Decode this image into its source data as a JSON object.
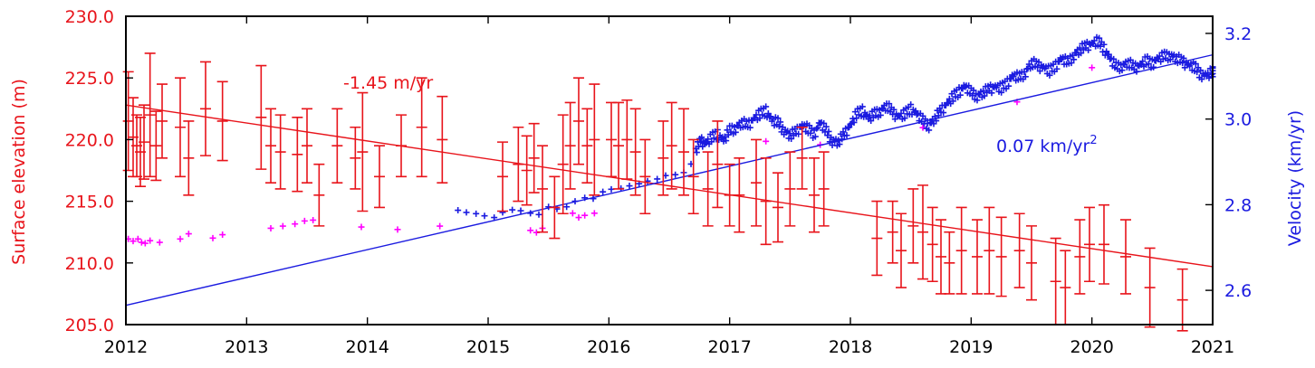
{
  "chart_data": {
    "type": "scatter",
    "colors": {
      "elevation": "#e8141b",
      "velocity": "#1b1be0",
      "velocity_alt": "#ff00ff",
      "axes": "#000000"
    },
    "x_axis": {
      "range": [
        2012,
        2021
      ],
      "ticks": [
        "2012",
        "2013",
        "2014",
        "2015",
        "2016",
        "2017",
        "2018",
        "2019",
        "2020",
        "2021"
      ],
      "label": ""
    },
    "y_left": {
      "label": "Surface elevation (m)",
      "range": [
        205,
        230
      ],
      "ticks": [
        "205.0",
        "210.0",
        "215.0",
        "220.0",
        "225.0",
        "230.0"
      ]
    },
    "y_right": {
      "label": "Velocity (km/yr)",
      "range": [
        2.52,
        3.24
      ],
      "ticks": [
        "2.6",
        "2.8",
        "3.0",
        "3.2"
      ]
    },
    "annotations": {
      "elevation_trend": "-1.45 m/yr",
      "velocity_trend_value": "0.07 km/yr",
      "velocity_trend_exp": "2"
    },
    "trend_elevation": {
      "x": [
        2012.0,
        2021.0
      ],
      "y": [
        222.8,
        209.7
      ]
    },
    "trend_velocity": {
      "x": [
        2012.0,
        2021.0
      ],
      "y": [
        2.565,
        3.15
      ]
    },
    "elevation_series": {
      "name": "Surface elevation",
      "points": [
        [
          2012.02,
          221.5,
          4.0
        ],
        [
          2012.06,
          220.2,
          3.2
        ],
        [
          2012.09,
          219.5,
          2.5
        ],
        [
          2012.12,
          219.0,
          2.8
        ],
        [
          2012.15,
          219.8,
          3.0
        ],
        [
          2012.2,
          222.0,
          5.0
        ],
        [
          2012.25,
          219.5,
          2.8
        ],
        [
          2012.3,
          221.5,
          3.0
        ],
        [
          2012.45,
          221.0,
          4.0
        ],
        [
          2012.52,
          218.5,
          3.0
        ],
        [
          2012.66,
          222.5,
          3.8
        ],
        [
          2012.8,
          221.5,
          3.2
        ],
        [
          2013.12,
          221.8,
          4.2
        ],
        [
          2013.2,
          219.5,
          3.0
        ],
        [
          2013.28,
          219.0,
          3.0
        ],
        [
          2013.42,
          218.8,
          3.0
        ],
        [
          2013.5,
          219.5,
          3.0
        ],
        [
          2013.6,
          215.5,
          2.5
        ],
        [
          2013.75,
          219.5,
          3.0
        ],
        [
          2013.9,
          218.5,
          2.5
        ],
        [
          2013.96,
          219.0,
          4.8
        ],
        [
          2014.1,
          217.0,
          2.5
        ],
        [
          2014.28,
          219.5,
          2.5
        ],
        [
          2014.45,
          221.0,
          4.0
        ],
        [
          2014.62,
          220.0,
          3.5
        ],
        [
          2015.12,
          217.0,
          2.8
        ],
        [
          2015.25,
          218.0,
          3.0
        ],
        [
          2015.32,
          217.5,
          2.8
        ],
        [
          2015.38,
          218.5,
          2.8
        ],
        [
          2015.45,
          216.0,
          3.5
        ],
        [
          2015.55,
          214.5,
          2.5
        ],
        [
          2015.62,
          218.0,
          4.0
        ],
        [
          2015.68,
          219.5,
          3.5
        ],
        [
          2015.75,
          221.5,
          3.5
        ],
        [
          2015.82,
          219.5,
          3.0
        ],
        [
          2015.88,
          220.0,
          4.5
        ],
        [
          2016.02,
          220.0,
          3.0
        ],
        [
          2016.08,
          219.5,
          3.5
        ],
        [
          2016.15,
          220.0,
          3.2
        ],
        [
          2016.22,
          219.0,
          3.5
        ],
        [
          2016.3,
          217.0,
          3.0
        ],
        [
          2016.45,
          218.5,
          3.0
        ],
        [
          2016.52,
          219.5,
          3.5
        ],
        [
          2016.62,
          219.0,
          3.5
        ],
        [
          2016.7,
          217.0,
          3.0
        ],
        [
          2016.82,
          216.0,
          3.0
        ],
        [
          2016.9,
          218.0,
          3.5
        ],
        [
          2017.0,
          215.5,
          2.5
        ],
        [
          2017.08,
          215.5,
          3.0
        ],
        [
          2017.22,
          216.5,
          3.5
        ],
        [
          2017.3,
          215.0,
          3.5
        ],
        [
          2017.4,
          214.5,
          2.8
        ],
        [
          2017.5,
          216.0,
          3.0
        ],
        [
          2017.6,
          218.5,
          2.5
        ],
        [
          2017.7,
          215.5,
          3.0
        ],
        [
          2017.78,
          216.0,
          3.0
        ],
        [
          2018.22,
          212.0,
          3.0
        ],
        [
          2018.35,
          212.5,
          2.5
        ],
        [
          2018.42,
          211.0,
          3.0
        ],
        [
          2018.52,
          213.0,
          3.0
        ],
        [
          2018.6,
          212.5,
          3.8
        ],
        [
          2018.68,
          211.5,
          3.0
        ],
        [
          2018.75,
          210.5,
          3.0
        ],
        [
          2018.82,
          210.0,
          2.5
        ],
        [
          2018.92,
          211.0,
          3.5
        ],
        [
          2019.05,
          210.5,
          3.0
        ],
        [
          2019.15,
          211.0,
          3.5
        ],
        [
          2019.25,
          210.5,
          3.2
        ],
        [
          2019.4,
          211.0,
          3.0
        ],
        [
          2019.5,
          210.0,
          3.0
        ],
        [
          2019.7,
          208.5,
          3.5
        ],
        [
          2019.78,
          208.0,
          3.0
        ],
        [
          2019.9,
          210.5,
          3.0
        ],
        [
          2019.98,
          211.5,
          3.0
        ],
        [
          2020.1,
          211.5,
          3.2
        ],
        [
          2020.28,
          210.5,
          3.0
        ],
        [
          2020.48,
          208.0,
          3.2
        ],
        [
          2020.75,
          207.0,
          2.5
        ]
      ]
    },
    "velocity_series": {
      "name": "Velocity",
      "points": [
        [
          2014.75,
          2.787
        ],
        [
          2014.82,
          2.782
        ],
        [
          2014.9,
          2.779
        ],
        [
          2014.97,
          2.774
        ],
        [
          2015.05,
          2.77
        ],
        [
          2015.12,
          2.782
        ],
        [
          2015.2,
          2.788
        ],
        [
          2015.27,
          2.786
        ],
        [
          2015.35,
          2.78
        ],
        [
          2015.42,
          2.777
        ],
        [
          2015.5,
          2.795
        ],
        [
          2015.57,
          2.79
        ],
        [
          2015.65,
          2.795
        ],
        [
          2015.72,
          2.808
        ],
        [
          2015.8,
          2.816
        ],
        [
          2015.87,
          2.814
        ],
        [
          2015.95,
          2.83
        ],
        [
          2016.02,
          2.836
        ],
        [
          2016.1,
          2.838
        ],
        [
          2016.17,
          2.844
        ],
        [
          2016.25,
          2.849
        ],
        [
          2016.32,
          2.855
        ],
        [
          2016.4,
          2.86
        ],
        [
          2016.47,
          2.868
        ],
        [
          2016.55,
          2.87
        ],
        [
          2016.62,
          2.875
        ],
        [
          2016.68,
          2.895
        ],
        [
          2016.72,
          2.925
        ],
        [
          2016.76,
          2.95
        ],
        [
          2016.8,
          2.942
        ],
        [
          2016.85,
          2.955
        ],
        [
          2016.9,
          2.966
        ],
        [
          2016.95,
          2.948
        ],
        [
          2017.0,
          2.972
        ],
        [
          2017.05,
          2.98
        ],
        [
          2017.1,
          2.99
        ],
        [
          2017.15,
          2.985
        ],
        [
          2017.2,
          3.0
        ],
        [
          2017.25,
          3.01
        ],
        [
          2017.3,
          3.02
        ],
        [
          2017.35,
          2.995
        ],
        [
          2017.4,
          2.99
        ],
        [
          2017.45,
          2.975
        ],
        [
          2017.5,
          2.96
        ],
        [
          2017.55,
          2.97
        ],
        [
          2017.6,
          2.985
        ],
        [
          2017.65,
          2.975
        ],
        [
          2017.7,
          2.965
        ],
        [
          2017.75,
          2.99
        ],
        [
          2017.8,
          2.97
        ],
        [
          2017.85,
          2.95
        ],
        [
          2017.9,
          2.945
        ],
        [
          2017.95,
          2.965
        ],
        [
          2018.0,
          2.985
        ],
        [
          2018.05,
          3.01
        ],
        [
          2018.1,
          3.02
        ],
        [
          2018.15,
          3.0
        ],
        [
          2018.2,
          3.01
        ],
        [
          2018.25,
          3.02
        ],
        [
          2018.3,
          3.03
        ],
        [
          2018.35,
          3.015
        ],
        [
          2018.4,
          3.005
        ],
        [
          2018.45,
          3.01
        ],
        [
          2018.5,
          3.025
        ],
        [
          2018.55,
          3.01
        ],
        [
          2018.6,
          2.995
        ],
        [
          2018.65,
          2.985
        ],
        [
          2018.7,
          3.0
        ],
        [
          2018.75,
          3.02
        ],
        [
          2018.8,
          3.035
        ],
        [
          2018.85,
          3.05
        ],
        [
          2018.9,
          3.065
        ],
        [
          2018.95,
          3.075
        ],
        [
          2019.0,
          3.06
        ],
        [
          2019.05,
          3.055
        ],
        [
          2019.1,
          3.06
        ],
        [
          2019.15,
          3.07
        ],
        [
          2019.2,
          3.075
        ],
        [
          2019.25,
          3.07
        ],
        [
          2019.3,
          3.085
        ],
        [
          2019.35,
          3.1
        ],
        [
          2019.4,
          3.095
        ],
        [
          2019.45,
          3.11
        ],
        [
          2019.5,
          3.13
        ],
        [
          2019.55,
          3.125
        ],
        [
          2019.6,
          3.12
        ],
        [
          2019.65,
          3.11
        ],
        [
          2019.7,
          3.125
        ],
        [
          2019.75,
          3.14
        ],
        [
          2019.8,
          3.13
        ],
        [
          2019.85,
          3.15
        ],
        [
          2019.9,
          3.16
        ],
        [
          2019.95,
          3.17
        ],
        [
          2020.0,
          3.175
        ],
        [
          2020.05,
          3.18
        ],
        [
          2020.1,
          3.165
        ],
        [
          2020.15,
          3.14
        ],
        [
          2020.2,
          3.12
        ],
        [
          2020.25,
          3.125
        ],
        [
          2020.3,
          3.13
        ],
        [
          2020.35,
          3.12
        ],
        [
          2020.4,
          3.125
        ],
        [
          2020.45,
          3.135
        ],
        [
          2020.5,
          3.13
        ],
        [
          2020.55,
          3.14
        ],
        [
          2020.6,
          3.145
        ],
        [
          2020.65,
          3.15
        ],
        [
          2020.7,
          3.14
        ],
        [
          2020.75,
          3.135
        ],
        [
          2020.8,
          3.125
        ],
        [
          2020.85,
          3.12
        ],
        [
          2020.9,
          3.105
        ],
        [
          2020.95,
          3.1
        ],
        [
          2021.0,
          3.11
        ]
      ]
    },
    "velocity_alt_series": {
      "name": "Velocity (alternate)",
      "points": [
        [
          2012.02,
          2.72
        ],
        [
          2012.06,
          2.715
        ],
        [
          2012.1,
          2.72
        ],
        [
          2012.13,
          2.712
        ],
        [
          2012.16,
          2.71
        ],
        [
          2012.2,
          2.716
        ],
        [
          2012.28,
          2.712
        ],
        [
          2012.45,
          2.72
        ],
        [
          2012.52,
          2.732
        ],
        [
          2012.72,
          2.722
        ],
        [
          2012.8,
          2.73
        ],
        [
          2013.2,
          2.745
        ],
        [
          2013.3,
          2.75
        ],
        [
          2013.4,
          2.755
        ],
        [
          2013.48,
          2.762
        ],
        [
          2013.55,
          2.764
        ],
        [
          2013.95,
          2.748
        ],
        [
          2014.25,
          2.742
        ],
        [
          2014.6,
          2.75
        ],
        [
          2015.35,
          2.74
        ],
        [
          2015.4,
          2.735
        ],
        [
          2015.45,
          2.745
        ],
        [
          2015.7,
          2.78
        ],
        [
          2015.75,
          2.77
        ],
        [
          2015.8,
          2.775
        ],
        [
          2015.88,
          2.78
        ],
        [
          2017.3,
          2.948
        ],
        [
          2017.75,
          2.94
        ],
        [
          2018.6,
          2.98
        ],
        [
          2019.38,
          3.04
        ],
        [
          2020.0,
          3.12
        ]
      ]
    }
  }
}
